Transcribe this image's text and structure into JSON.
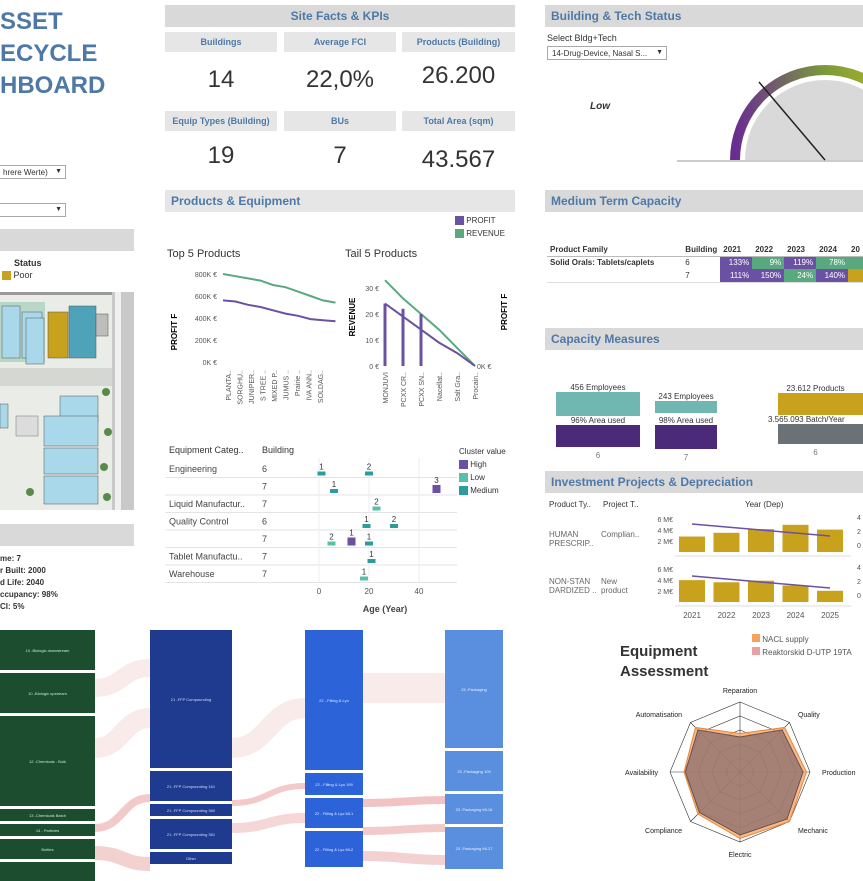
{
  "title_lines": [
    "SSET",
    "ECYCLE",
    "HBOARD"
  ],
  "left": {
    "filter1": "hrere Werte)",
    "filter2": "",
    "status_label": "Status",
    "status_legend": "Poor",
    "info_lines": [
      "me: 7",
      "r Built: 2000",
      "d Life: 2040",
      "ccupancy: 98%",
      "CI: 5%"
    ]
  },
  "site": {
    "header": "Site Facts & KPIs",
    "kpis": [
      {
        "label": "Buildings",
        "value": "14"
      },
      {
        "label": "Average FCI",
        "value": "22,0%"
      },
      {
        "label": "Products (Building)",
        "value": "26.200"
      },
      {
        "label": "Equip Types (Building)",
        "value": "19"
      },
      {
        "label": "BUs",
        "value": "7"
      },
      {
        "label": "Total Area (sqm)",
        "value": "43.567"
      }
    ]
  },
  "tech": {
    "header": "Building & Tech Status",
    "select_label": "Select Bldg+Tech",
    "select_value": "14-Drug-Device, Nasal S...",
    "gauge_label": "Low"
  },
  "prod": {
    "header": "Products & Equipment",
    "legend": [
      {
        "name": "PROFIT",
        "color": "#6a51a3"
      },
      {
        "name": "REVENUE",
        "color": "#59a97f"
      }
    ],
    "top_title": "Top 5 Products",
    "tail_title": "Tail 5 Products",
    "top_ylabel": "PROFIT F",
    "tail_ylabel": "REVENUE",
    "right_ylabel": "PROFIT F",
    "top_yticks": [
      "800K €",
      "600K €",
      "400K €",
      "200K €",
      "0K €"
    ],
    "tail_yticks": [
      "30 €",
      "20 €",
      "10 €",
      "0 €"
    ],
    "tail_right_tick": "0K €",
    "top_xlabels": [
      "PLANTA..",
      "SORGHU..",
      "JUNIPER..",
      "S TREE ..",
      "MIXED P..",
      "JUMUS ..",
      "Prairie ..",
      "IVA ANN..",
      "SOLDAG.."
    ],
    "tail_xlabels": [
      "MONJUVI",
      "PCXX CR..",
      "PCXX SN..",
      "Nacellat..",
      "Salt Gra..",
      "Procain.."
    ]
  },
  "equip": {
    "col1": "Equipment Categ..",
    "col2": "Building",
    "legend_title": "Cluster value",
    "legend": [
      {
        "name": "High",
        "color": "#6a51a3"
      },
      {
        "name": "Low",
        "color": "#59c0a8"
      },
      {
        "name": "Medium",
        "color": "#2a9d9d"
      }
    ],
    "rows": [
      {
        "cat": "Engineering",
        "bld": "6"
      },
      {
        "cat": "",
        "bld": "7"
      },
      {
        "cat": "Liquid Manufactur..",
        "bld": "7"
      },
      {
        "cat": "Quality Control",
        "bld": "6"
      },
      {
        "cat": "",
        "bld": "7"
      },
      {
        "cat": "Tablet Manufactu..",
        "bld": "7"
      },
      {
        "cat": "Warehouse",
        "bld": "7"
      }
    ],
    "xticks": [
      "0",
      "20",
      "40"
    ],
    "xlabel": "Age (Year)",
    "marks": [
      {
        "row": 0,
        "age": 1,
        "label": "1",
        "cluster": "Medium"
      },
      {
        "row": 0,
        "age": 20,
        "label": "2",
        "cluster": "Medium"
      },
      {
        "row": 1,
        "age": 6,
        "label": "1",
        "cluster": "Medium"
      },
      {
        "row": 1,
        "age": 47,
        "label": "3",
        "cluster": "High"
      },
      {
        "row": 2,
        "age": 23,
        "label": "2",
        "cluster": "Low"
      },
      {
        "row": 3,
        "age": 19,
        "label": "1",
        "cluster": "Medium"
      },
      {
        "row": 3,
        "age": 30,
        "label": "2",
        "cluster": "Medium"
      },
      {
        "row": 4,
        "age": 5,
        "label": "2",
        "cluster": "Low"
      },
      {
        "row": 4,
        "age": 13,
        "label": "1",
        "cluster": "High"
      },
      {
        "row": 4,
        "age": 20,
        "label": "1",
        "cluster": "Medium"
      },
      {
        "row": 5,
        "age": 21,
        "label": "1",
        "cluster": "Medium"
      },
      {
        "row": 6,
        "age": 18,
        "label": "1",
        "cluster": "Low"
      }
    ]
  },
  "capacity": {
    "header": "Medium Term Capacity",
    "col_family": "Product Family",
    "col_building": "Building",
    "years": [
      "2021",
      "2022",
      "2023",
      "2024",
      "20"
    ],
    "family": "Solid Orals: Tablets/caplets",
    "rows": [
      {
        "building": "6",
        "cells": [
          "133%",
          "9%",
          "119%",
          "78%",
          ""
        ],
        "colors": [
          "#6a51a3",
          "#59a97f",
          "#6a51a3",
          "#59a97f",
          "#59a97f"
        ]
      },
      {
        "building": "7",
        "cells": [
          "111%",
          "150%",
          "24%",
          "140%",
          ""
        ],
        "colors": [
          "#6a51a3",
          "#6a51a3",
          "#59a97f",
          "#6a51a3",
          "#c9a21d"
        ]
      }
    ]
  },
  "measures": {
    "header": "Capacity Measures",
    "bars": [
      {
        "top": "456 Employees",
        "bottom": "96% Area used",
        "x": "6"
      },
      {
        "top": "243 Employees",
        "bottom": "98% Area used",
        "x": "7"
      },
      {
        "top": "23.612 Products",
        "bottom": "3.565.093 Batch/Year",
        "x": "6"
      }
    ]
  },
  "invest": {
    "header": "Investment Projects & Depreciation",
    "col1": "Product Ty..",
    "col2": "Project T..",
    "year_header": "Year (Dep)",
    "rows": [
      {
        "type": "HUMAN PRESCRIP..",
        "proj": "Complian..",
        "values": [
          2.9,
          3.6,
          4.3,
          5.1,
          4.2
        ],
        "yticks": [
          "6 M€",
          "4 M€",
          "2 M€"
        ],
        "right": [
          "4",
          "2",
          "0"
        ]
      },
      {
        "type": "NON-STAN DARDIZED ..",
        "proj": "New product",
        "values": [
          4.1,
          3.7,
          4.0,
          3.1,
          2.1
        ],
        "yticks": [
          "6 M€",
          "4 M€",
          "2 M€"
        ],
        "right": [
          "4",
          "2",
          "0"
        ]
      }
    ],
    "years": [
      "2021",
      "2022",
      "2023",
      "2024",
      "2025"
    ]
  },
  "sankey": {
    "col1": [
      "10 -Biologic downstream",
      "10 -Biologic upstream",
      "12 -Chemicals - Bulk",
      "13 -Chemicals Batch",
      "14 - Particles",
      "Bottles",
      "Liquids"
    ],
    "col2": [
      "21 -FFP Compounding",
      "21 -FFP Compounding 161",
      "21 -FFP Compounding 360",
      "21 -FFP Compounding 361",
      "Other"
    ],
    "col3": [
      "22 - Filling & Lyo",
      "22 - Filling & Lyo 199",
      "22 - Filling & Lyo ML1",
      "22 - Filling & Lyo ML2"
    ],
    "col4": [
      "23 -Packaging",
      "23 -Packaging 109",
      "23 -Packaging ML16",
      "23 -Packaging ML17"
    ]
  },
  "radar": {
    "title1": "Equipment",
    "title2": "Assessment",
    "legend": [
      {
        "name": "NACL supply",
        "color": "#f5a25d"
      },
      {
        "name": "Reaktorskid D-UTP 19TA",
        "color": "#e8a0a0"
      }
    ],
    "axes": [
      "Reparation",
      "Quality",
      "Production",
      "Mechanic",
      "Electric",
      "Compliance",
      "Availability",
      "Automatisation"
    ]
  }
}
